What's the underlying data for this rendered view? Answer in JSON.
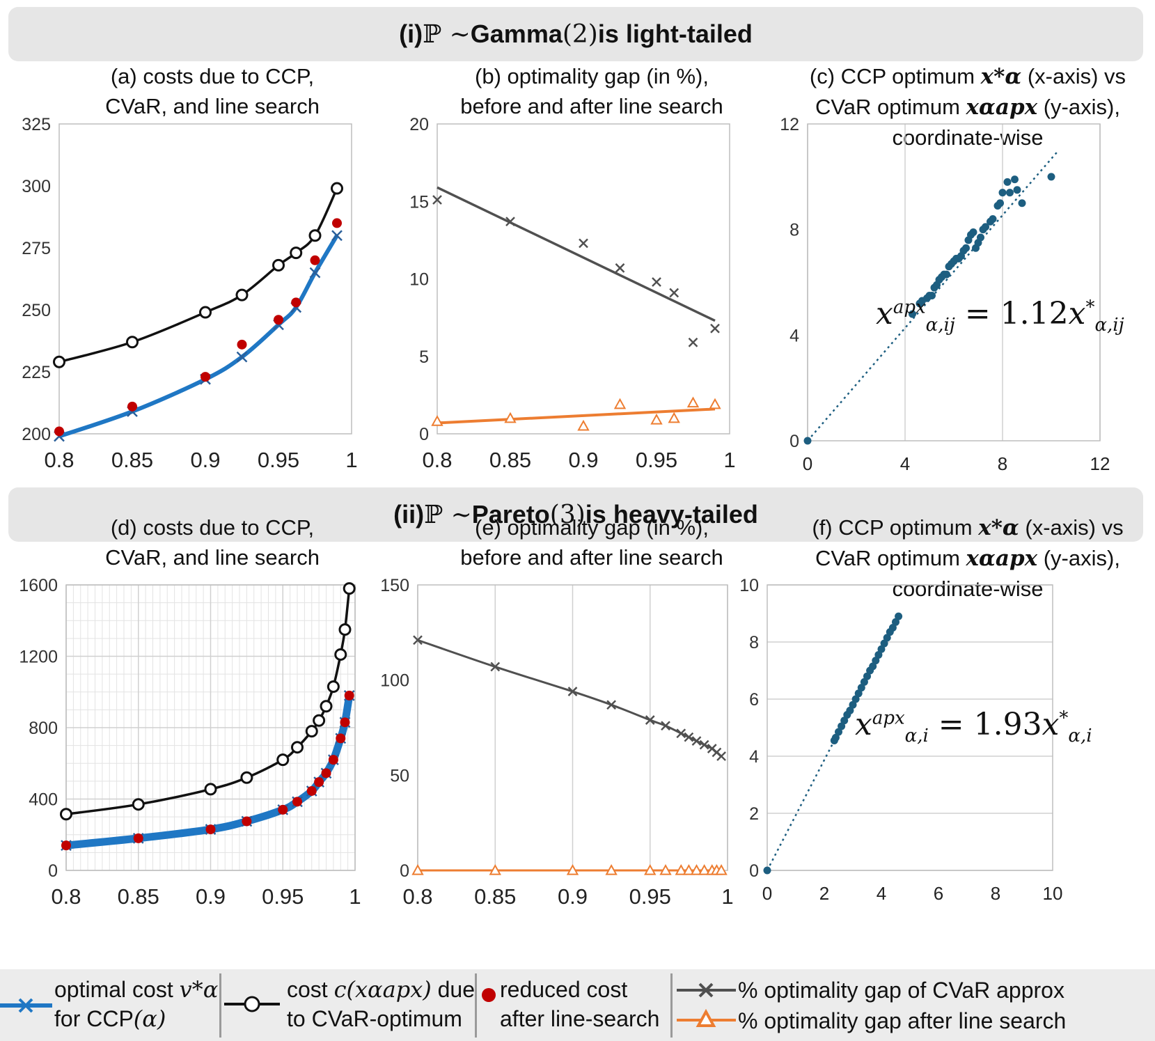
{
  "banners": {
    "top": {
      "prefix": "(i) ",
      "dist": "ℙ ∼",
      "mid": " Gamma",
      "param": "(2)",
      "suffix": " is light-tailed"
    },
    "bottom": {
      "prefix": "(ii) ",
      "dist": "ℙ ∼",
      "mid": " Pareto",
      "param": "(3)",
      "suffix": " is heavy-tailed"
    }
  },
  "titles": {
    "a": [
      "(a) costs due to CCP,",
      "CVaR, and line search"
    ],
    "b": [
      "(b) optimality gap (in %),",
      "before and after line search"
    ],
    "c": {
      "l1a": "(c) CCP optimum ",
      "l1b": " (x-axis) vs",
      "l2a": "CVaR optimum ",
      "l2b": " (y-axis),",
      "l3": "coordinate-wise"
    },
    "d": [
      "(d) costs due to CCP,",
      "CVaR, and line search"
    ],
    "e": [
      "(e) optimality gap (in %),",
      "before and after line search"
    ],
    "f": {
      "l1a": "(f) CCP optimum ",
      "l1b": " (x-axis) vs",
      "l2a": "CVaR optimum ",
      "l2b": " (y-axis),",
      "l3": "coordinate-wise"
    }
  },
  "math": {
    "x_star": "x*α",
    "x_apx": "xαapx"
  },
  "equations": {
    "c": {
      "lhs": "x",
      "sup": "apx",
      "sub": "α,ij",
      "eq": " = 1.12",
      "rhs": "x",
      "rsup": "*",
      "rsub": "α,ij"
    },
    "f": {
      "lhs": "x",
      "sup": "apx",
      "sub": "α,i",
      "eq": " = 1.93",
      "rhs": "x",
      "rsup": "*",
      "rsub": "α,i"
    }
  },
  "colors": {
    "blue": "#1f77c4",
    "black": "#111111",
    "red": "#c00000",
    "gray": "#505050",
    "orange": "#ed7d31",
    "teal": "#1d5e80",
    "banner": "#e6e6e6",
    "legend_bg": "#ececec"
  },
  "legend": {
    "item1": {
      "line1": "optimal cost ",
      "line1_math": "v*α",
      "line2": "for  CCP",
      "line2_math": "(α)"
    },
    "item2": {
      "line1": "cost ",
      "line1_math": "c(xαapx)",
      "line1_end": " due",
      "line2": "to CVaR-optimum"
    },
    "item3": {
      "line1": "reduced cost",
      "line2": "after line-search"
    },
    "item4": "% optimality gap of CVaR approx",
    "item5": "% optimality gap after line search"
  },
  "chart_data": [
    {
      "id": "a",
      "type": "line",
      "xlim": [
        0.8,
        1
      ],
      "ylim": [
        200,
        325
      ],
      "xticks": [
        "0.8",
        "0.85",
        "0.9",
        "0.95",
        "1"
      ],
      "yticks": [
        "200",
        "225",
        "250",
        "275",
        "300",
        "325"
      ],
      "grid": false,
      "series": [
        {
          "name": "optimal cost v*α for CCP(α)",
          "marker": "x",
          "color": "#1f77c4",
          "x": [
            0.8,
            0.85,
            0.9,
            0.925,
            0.95,
            0.962,
            0.975,
            0.99
          ],
          "y": [
            199,
            209,
            222,
            231,
            244,
            251,
            265,
            280
          ]
        },
        {
          "name": "cost c(xαapx) due to CVaR-optimum",
          "marker": "circle",
          "color": "#111111",
          "x": [
            0.8,
            0.85,
            0.9,
            0.925,
            0.95,
            0.962,
            0.975,
            0.99
          ],
          "y": [
            229,
            237,
            249,
            256,
            268,
            273,
            280,
            299
          ]
        },
        {
          "name": "reduced cost after line-search",
          "marker": "dot",
          "color": "#c00000",
          "x": [
            0.8,
            0.85,
            0.9,
            0.925,
            0.95,
            0.962,
            0.975,
            0.99
          ],
          "y": [
            201,
            211,
            223,
            236,
            246,
            253,
            270,
            285
          ]
        }
      ]
    },
    {
      "id": "b",
      "type": "scatter",
      "xlim": [
        0.8,
        1
      ],
      "ylim": [
        0,
        20
      ],
      "xticks": [
        "0.8",
        "0.85",
        "0.9",
        "0.95",
        "1"
      ],
      "yticks": [
        "0",
        "5",
        "10",
        "15",
        "20"
      ],
      "grid": false,
      "series": [
        {
          "name": "% optimality gap of CVaR approx",
          "marker": "x",
          "color": "#505050",
          "x": [
            0.8,
            0.85,
            0.9,
            0.925,
            0.95,
            0.962,
            0.975,
            0.99
          ],
          "y": [
            15.1,
            13.7,
            12.3,
            10.7,
            9.8,
            9.1,
            5.9,
            6.8
          ],
          "trend": [
            [
              0.8,
              15.9
            ],
            [
              0.99,
              7.3
            ]
          ]
        },
        {
          "name": "% optimality gap after line search",
          "marker": "triangle",
          "color": "#ed7d31",
          "x": [
            0.8,
            0.85,
            0.9,
            0.925,
            0.95,
            0.962,
            0.975,
            0.99
          ],
          "y": [
            0.8,
            1.0,
            0.5,
            1.9,
            0.9,
            1.0,
            2.0,
            1.9
          ],
          "trend": [
            [
              0.8,
              0.7
            ],
            [
              0.99,
              1.6
            ]
          ]
        }
      ]
    },
    {
      "id": "c",
      "type": "scatter",
      "xlim": [
        0,
        12
      ],
      "ylim": [
        0,
        12
      ],
      "xticks": [
        "0",
        "4",
        "8",
        "12"
      ],
      "yticks": [
        "0",
        "4",
        "8",
        "12"
      ],
      "grid": "vertical",
      "series": [
        {
          "marker": "dot",
          "color": "#1d5e80",
          "x": [
            0,
            4.3,
            4.6,
            4.7,
            4.9,
            5.0,
            5.1,
            5.2,
            5.3,
            5.4,
            5.5,
            5.6,
            5.7,
            5.8,
            5.9,
            6.0,
            6.1,
            6.2,
            6.3,
            6.4,
            6.5,
            6.6,
            6.7,
            6.8,
            6.9,
            7.0,
            7.1,
            7.2,
            7.3,
            7.5,
            7.6,
            7.8,
            7.9,
            8.0,
            8.2,
            8.3,
            8.5,
            8.6,
            8.8,
            10.0
          ],
          "y": [
            0,
            4.8,
            5.2,
            5.3,
            5.4,
            5.5,
            5.5,
            5.8,
            5.9,
            6.1,
            6.2,
            6.3,
            6.3,
            6.6,
            6.7,
            6.8,
            6.9,
            6.9,
            7.0,
            7.2,
            7.3,
            7.6,
            7.8,
            7.9,
            7.3,
            7.5,
            7.7,
            8.0,
            8.1,
            8.3,
            8.4,
            8.9,
            9.0,
            9.4,
            9.8,
            9.4,
            9.9,
            9.5,
            9.0,
            10.0
          ],
          "trend": [
            [
              0,
              0
            ],
            [
              10.3,
              11.0
            ]
          ]
        }
      ]
    },
    {
      "id": "d",
      "type": "line",
      "xlim": [
        0.8,
        1
      ],
      "ylim": [
        0,
        1600
      ],
      "xticks": [
        "0.8",
        "0.85",
        "0.9",
        "0.95",
        "1"
      ],
      "yticks": [
        "0",
        "400",
        "800",
        "1200",
        "1600"
      ],
      "grid": "both",
      "series": [
        {
          "name": "optimal cost v*α for CCP(α)",
          "marker": "x",
          "color": "#1f77c4",
          "x": [
            0.8,
            0.85,
            0.9,
            0.925,
            0.95,
            0.96,
            0.97,
            0.975,
            0.98,
            0.985,
            0.99,
            0.993,
            0.996
          ],
          "y": [
            140,
            180,
            230,
            275,
            340,
            385,
            445,
            495,
            545,
            620,
            740,
            830,
            980
          ]
        },
        {
          "name": "cost c(xαapx) due to CVaR-optimum",
          "marker": "circle",
          "color": "#111111",
          "x": [
            0.8,
            0.85,
            0.9,
            0.925,
            0.95,
            0.96,
            0.97,
            0.975,
            0.98,
            0.985,
            0.99,
            0.993,
            0.996
          ],
          "y": [
            315,
            370,
            455,
            520,
            620,
            690,
            780,
            840,
            920,
            1030,
            1210,
            1350,
            1580
          ]
        },
        {
          "name": "reduced cost after line-search",
          "marker": "dot",
          "color": "#c00000",
          "x": [
            0.8,
            0.85,
            0.9,
            0.925,
            0.95,
            0.96,
            0.97,
            0.975,
            0.98,
            0.985,
            0.99,
            0.993,
            0.996
          ],
          "y": [
            140,
            180,
            230,
            275,
            340,
            385,
            445,
            495,
            545,
            620,
            740,
            830,
            980
          ]
        }
      ]
    },
    {
      "id": "e",
      "type": "line",
      "xlim": [
        0.8,
        1
      ],
      "ylim": [
        0,
        150
      ],
      "xticks": [
        "0.8",
        "0.85",
        "0.9",
        "0.95",
        "1"
      ],
      "yticks": [
        "0",
        "50",
        "100",
        "150"
      ],
      "grid": "vertical",
      "series": [
        {
          "name": "% optimality gap of CVaR approx",
          "marker": "x",
          "color": "#505050",
          "x": [
            0.8,
            0.85,
            0.9,
            0.925,
            0.95,
            0.96,
            0.97,
            0.975,
            0.98,
            0.985,
            0.99,
            0.993,
            0.996
          ],
          "y": [
            121,
            107,
            94,
            87,
            79,
            76,
            72,
            70,
            68,
            66,
            64,
            62,
            60
          ]
        },
        {
          "name": "% optimality gap after line search",
          "marker": "triangle",
          "color": "#ed7d31",
          "x": [
            0.8,
            0.85,
            0.9,
            0.925,
            0.95,
            0.96,
            0.97,
            0.975,
            0.98,
            0.985,
            0.99,
            0.993,
            0.996
          ],
          "y": [
            0,
            0,
            0,
            0,
            0,
            0,
            0,
            0,
            0,
            0,
            0,
            0,
            0
          ]
        }
      ]
    },
    {
      "id": "f",
      "type": "scatter",
      "xlim": [
        0,
        10
      ],
      "ylim": [
        0,
        10
      ],
      "xticks": [
        "0",
        "2",
        "4",
        "6",
        "8",
        "10"
      ],
      "yticks": [
        "0",
        "2",
        "4",
        "6",
        "8",
        "10"
      ],
      "grid": "horizontal",
      "series": [
        {
          "marker": "dot",
          "color": "#1d5e80",
          "x": [
            0,
            2.35,
            2.4,
            2.5,
            2.6,
            2.7,
            2.8,
            2.9,
            3.0,
            3.1,
            3.2,
            3.3,
            3.4,
            3.5,
            3.6,
            3.7,
            3.8,
            3.9,
            4.0,
            4.1,
            4.2,
            4.3,
            4.4,
            4.5,
            4.6
          ],
          "y": [
            0,
            4.55,
            4.65,
            4.85,
            5.05,
            5.25,
            5.45,
            5.6,
            5.8,
            6.0,
            6.2,
            6.4,
            6.6,
            6.8,
            7.0,
            7.15,
            7.35,
            7.55,
            7.75,
            7.95,
            8.15,
            8.35,
            8.5,
            8.7,
            8.9
          ],
          "trend": [
            [
              0,
              0
            ],
            [
              4.6,
              8.9
            ]
          ]
        }
      ]
    }
  ]
}
